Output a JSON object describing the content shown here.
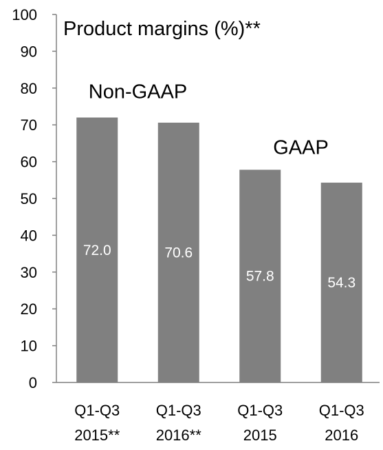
{
  "chart_data": {
    "type": "bar",
    "title": "Product margins (%)**",
    "categories": [
      [
        "Q1-Q3",
        "2015**"
      ],
      [
        "Q1-Q3",
        "2016**"
      ],
      [
        "Q1-Q3",
        "2015"
      ],
      [
        "Q1-Q3",
        "2016"
      ]
    ],
    "values": [
      72.0,
      70.6,
      57.8,
      54.3
    ],
    "value_labels": [
      "72.0",
      "70.6",
      "57.8",
      "54.3"
    ],
    "ylim": [
      0,
      100
    ],
    "yticks": [
      0,
      10,
      20,
      30,
      40,
      50,
      60,
      70,
      80,
      90,
      100
    ],
    "group_labels": [
      {
        "text": "Non-GAAP",
        "categories": [
          0,
          1
        ]
      },
      {
        "text": "GAAP",
        "categories": [
          2,
          3
        ]
      }
    ],
    "xlabel": "",
    "ylabel": "",
    "grid": false,
    "legend": "none",
    "colors": {
      "bar": "#808080",
      "axis": "#808080",
      "value_label": "#ffffff"
    }
  }
}
